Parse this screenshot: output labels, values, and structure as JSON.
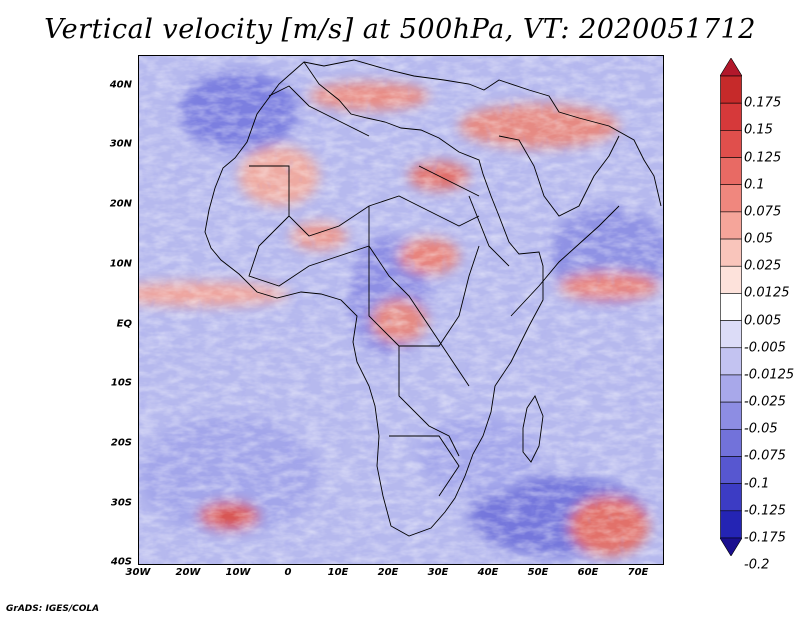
{
  "title": "Vertical velocity [m/s] at 500hPa, VT: 2020051712",
  "footer": "GrADS: IGES/COLA",
  "map": {
    "lat_labels": [
      "40N",
      "30N",
      "20N",
      "10N",
      "EQ",
      "10S",
      "20S",
      "30S",
      "40S"
    ],
    "lon_labels": [
      "30W",
      "20W",
      "10W",
      "0",
      "10E",
      "20E",
      "30E",
      "40E",
      "50E",
      "60E",
      "70E"
    ],
    "extent": {
      "lon_min": -30,
      "lon_max": 75,
      "lat_min": -40,
      "lat_max": 45
    }
  },
  "colorbar": {
    "labels": [
      "0.175",
      "0.15",
      "0.125",
      "0.1",
      "0.075",
      "0.05",
      "0.025",
      "0.0125",
      "0.005",
      "-0.005",
      "-0.0125",
      "-0.025",
      "-0.05",
      "-0.075",
      "-0.1",
      "-0.125",
      "-0.175",
      "-0.2"
    ],
    "colors": [
      "#b2182b",
      "#c62a2a",
      "#d6393a",
      "#e04f4c",
      "#e86a64",
      "#f0877e",
      "#f5a59a",
      "#f9c5bb",
      "#fde2db",
      "#ffffff",
      "#dcdcf7",
      "#c3c3f1",
      "#a8a8ea",
      "#8d8de3",
      "#7272da",
      "#5757d0",
      "#3c3cc4",
      "#2424b4",
      "#1a0f8f"
    ]
  }
}
